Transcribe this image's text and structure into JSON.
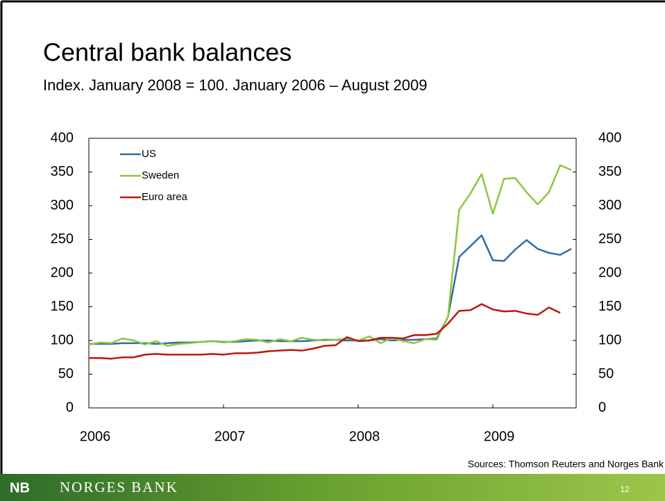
{
  "chart_data": {
    "type": "line",
    "title": "Central bank balances",
    "subtitle": "Index. January 2008 = 100. January 2006 – August 2009",
    "categories": [
      "2006",
      null,
      null,
      null,
      null,
      null,
      null,
      null,
      null,
      null,
      null,
      null,
      "2007",
      null,
      null,
      null,
      null,
      null,
      null,
      null,
      null,
      null,
      null,
      null,
      "2008",
      null,
      null,
      null,
      null,
      null,
      null,
      null,
      null,
      null,
      null,
      null,
      "2009",
      null,
      null,
      null,
      null,
      null,
      null,
      null
    ],
    "series": [
      {
        "name": "US",
        "color": "#2e6da4",
        "values": [
          95,
          95,
          95,
          96,
          96,
          96,
          95,
          96,
          97,
          97,
          98,
          99,
          98,
          98,
          99,
          100,
          100,
          99,
          99,
          99,
          100,
          101,
          101,
          100,
          100,
          100,
          102,
          100,
          101,
          101,
          102,
          103,
          135,
          224,
          240,
          256,
          219,
          218,
          235,
          249,
          236,
          230,
          227,
          236
        ]
      },
      {
        "name": "Sweden",
        "color": "#8dc63f",
        "values": [
          94,
          97,
          96,
          103,
          100,
          94,
          99,
          92,
          95,
          96,
          98,
          99,
          97,
          99,
          102,
          101,
          97,
          102,
          99,
          104,
          101,
          100,
          101,
          103,
          100,
          106,
          96,
          104,
          99,
          96,
          102,
          101,
          135,
          294,
          318,
          347,
          288,
          340,
          341,
          320,
          302,
          320,
          360,
          353
        ]
      },
      {
        "name": "Euro area",
        "color": "#c0150f",
        "values": [
          74,
          74,
          73,
          75,
          75,
          79,
          80,
          79,
          79,
          79,
          79,
          80,
          79,
          81,
          81,
          82,
          84,
          85,
          86,
          85,
          88,
          92,
          93,
          105,
          99,
          100,
          104,
          104,
          103,
          108,
          108,
          110,
          125,
          144,
          145,
          154,
          146,
          143,
          144,
          140,
          138,
          149,
          141,
          null
        ]
      }
    ],
    "ylim": [
      0,
      400
    ],
    "yticks": [
      0,
      50,
      100,
      150,
      200,
      250,
      300,
      350,
      400
    ],
    "legend": "upper left",
    "grid": false,
    "source": "Sources: Thomson Reuters and Norges Bank"
  },
  "footer": {
    "logo_mark": "NB",
    "bank": "NORGES BANK",
    "page": "12"
  }
}
